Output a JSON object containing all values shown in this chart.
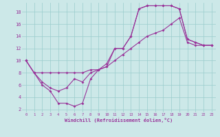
{
  "xlabel": "Windchill (Refroidissement éolien,°C)",
  "xlim": [
    -0.5,
    23.5
  ],
  "ylim": [
    1.5,
    19.5
  ],
  "xticks": [
    0,
    1,
    2,
    3,
    4,
    5,
    6,
    7,
    8,
    9,
    10,
    11,
    12,
    13,
    14,
    15,
    16,
    17,
    18,
    19,
    20,
    21,
    22,
    23
  ],
  "yticks": [
    2,
    4,
    6,
    8,
    10,
    12,
    14,
    16,
    18
  ],
  "bg_color": "#cce8e8",
  "line_color": "#993399",
  "grid_color": "#99cccc",
  "s1_x": [
    0,
    1,
    2,
    3,
    4,
    5,
    6,
    7,
    8,
    9,
    10,
    11,
    12,
    13,
    14,
    15,
    16,
    17,
    18,
    19,
    20,
    21,
    22,
    23
  ],
  "s1_y": [
    10,
    8,
    6,
    5,
    3,
    3,
    2.5,
    3,
    7,
    8.5,
    9,
    12,
    12,
    14,
    18.5,
    19,
    19,
    19,
    19,
    18.5,
    13.5,
    13,
    12.5,
    12.5
  ],
  "s2_x": [
    0,
    1,
    2,
    3,
    4,
    5,
    6,
    7,
    8,
    9,
    10,
    11,
    12,
    13,
    14,
    15,
    16,
    17,
    18,
    19,
    20,
    21,
    22,
    23
  ],
  "s2_y": [
    10,
    8,
    6.5,
    5.5,
    5,
    5.5,
    7,
    6.5,
    8,
    8.5,
    9.5,
    12,
    12,
    14,
    18.5,
    19,
    19,
    19,
    19,
    18.5,
    13.5,
    13,
    12.5,
    12.5
  ],
  "s3_x": [
    0,
    1,
    2,
    3,
    4,
    5,
    6,
    7,
    8,
    9,
    10,
    11,
    12,
    13,
    14,
    15,
    16,
    17,
    18,
    19,
    20,
    21,
    22,
    23
  ],
  "s3_y": [
    10,
    8,
    8,
    8,
    8,
    8,
    8,
    8,
    8.5,
    8.5,
    9,
    10,
    11,
    12,
    13,
    14,
    14.5,
    15,
    16,
    17,
    13,
    12.5,
    12.5,
    12.5
  ]
}
